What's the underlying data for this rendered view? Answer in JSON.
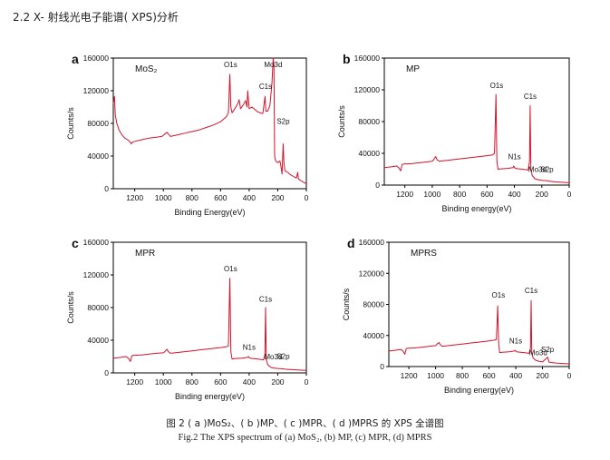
{
  "page": {
    "section_heading": "2.2 X- 射线光电子能谱( XPS)分析",
    "caption_cn": "图 2 ( a )MoS₂、( b )MP、( c )MPR、( d )MPRS 的 XPS 全谱图",
    "caption_en": "Fig.2 The XPS spectrum of (a) MoS₂, (b) MP, (c) MPR, (d) MPRS"
  },
  "colors": {
    "line": "#d4122c",
    "axis": "#000000",
    "text": "#111111"
  },
  "chart_data": [
    {
      "type": "line",
      "panel_letter": "a",
      "title": "MoS₂",
      "xlabel": "Binding Energy(eV)",
      "ylabel": "Counts/s",
      "xlim": [
        1350,
        0
      ],
      "ylim": [
        0,
        160000
      ],
      "xticks": [
        1200,
        1000,
        800,
        600,
        400,
        200,
        0
      ],
      "yticks": [
        0,
        40000,
        80000,
        120000,
        160000
      ],
      "grid": false,
      "annotations": [
        {
          "text": "O1s",
          "x": 530,
          "y": 150000
        },
        {
          "text": "Mo3d",
          "x": 232,
          "y": 160000
        },
        {
          "text": "C1s",
          "x": 285,
          "y": 118000
        },
        {
          "text": "S2p",
          "x": 162,
          "y": 75000
        }
      ],
      "series": [
        {
          "points": [
            [
              1350,
              104000
            ],
            [
              1342,
              113000
            ],
            [
              1336,
              90000
            ],
            [
              1325,
              80000
            ],
            [
              1310,
              72000
            ],
            [
              1290,
              66000
            ],
            [
              1270,
              62000
            ],
            [
              1250,
              60000
            ],
            [
              1230,
              57000
            ],
            [
              1225,
              55000
            ],
            [
              1215,
              57000
            ],
            [
              1200,
              58000
            ],
            [
              1150,
              60000
            ],
            [
              1100,
              62000
            ],
            [
              1050,
              63000
            ],
            [
              1010,
              64000
            ],
            [
              990,
              67000
            ],
            [
              975,
              69000
            ],
            [
              965,
              67000
            ],
            [
              950,
              64000
            ],
            [
              900,
              66000
            ],
            [
              850,
              68000
            ],
            [
              800,
              70000
            ],
            [
              750,
              72000
            ],
            [
              700,
              75000
            ],
            [
              650,
              78000
            ],
            [
              600,
              82000
            ],
            [
              560,
              88000
            ],
            [
              545,
              93000
            ],
            [
              535,
              140000
            ],
            [
              528,
              100000
            ],
            [
              520,
              93000
            ],
            [
              500,
              98000
            ],
            [
              480,
              104000
            ],
            [
              470,
              109000
            ],
            [
              460,
              98000
            ],
            [
              440,
              103000
            ],
            [
              425,
              108000
            ],
            [
              415,
              100000
            ],
            [
              410,
              120000
            ],
            [
              400,
              98000
            ],
            [
              380,
              100000
            ],
            [
              340,
              94000
            ],
            [
              305,
              92000
            ],
            [
              300,
              98000
            ],
            [
              289,
              113000
            ],
            [
              283,
              95000
            ],
            [
              270,
              95000
            ],
            [
              255,
              102000
            ],
            [
              240,
              130000
            ],
            [
              232,
              160000
            ],
            [
              227,
              152000
            ],
            [
              222,
              40000
            ],
            [
              215,
              34000
            ],
            [
              200,
              32000
            ],
            [
              185,
              34000
            ],
            [
              180,
              30000
            ],
            [
              170,
              18000
            ],
            [
              162,
              55000
            ],
            [
              157,
              33000
            ],
            [
              150,
              22000
            ],
            [
              130,
              20000
            ],
            [
              110,
              17000
            ],
            [
              90,
              15000
            ],
            [
              70,
              13000
            ],
            [
              60,
              20000
            ],
            [
              55,
              12000
            ],
            [
              40,
              10000
            ],
            [
              20,
              8000
            ],
            [
              0,
              6000
            ]
          ]
        }
      ]
    },
    {
      "type": "line",
      "panel_letter": "b",
      "title": "MP",
      "xlabel": "Binding energy(eV)",
      "ylabel": "Counts/s",
      "xlim": [
        1350,
        0
      ],
      "ylim": [
        0,
        160000
      ],
      "xticks": [
        1200,
        1000,
        800,
        600,
        400,
        200,
        0
      ],
      "yticks": [
        0,
        40000,
        80000,
        120000,
        160000
      ],
      "grid": false,
      "annotations": [
        {
          "text": "O1s",
          "x": 530,
          "y": 118000
        },
        {
          "text": "C1s",
          "x": 285,
          "y": 104000
        },
        {
          "text": "N1s",
          "x": 400,
          "y": 28000
        },
        {
          "text": "Mo3d",
          "x": 232,
          "y": 12000
        },
        {
          "text": "S2p",
          "x": 162,
          "y": 12000
        }
      ],
      "series": [
        {
          "points": [
            [
              1350,
              22000
            ],
            [
              1300,
              23000
            ],
            [
              1260,
              24000
            ],
            [
              1245,
              22000
            ],
            [
              1230,
              18000
            ],
            [
              1220,
              26000
            ],
            [
              1210,
              26500
            ],
            [
              1150,
              27000
            ],
            [
              1100,
              28000
            ],
            [
              1050,
              29000
            ],
            [
              1000,
              30000
            ],
            [
              990,
              32000
            ],
            [
              975,
              36000
            ],
            [
              965,
              32000
            ],
            [
              950,
              30000
            ],
            [
              900,
              31000
            ],
            [
              850,
              32000
            ],
            [
              800,
              33000
            ],
            [
              750,
              34000
            ],
            [
              700,
              35000
            ],
            [
              650,
              36000
            ],
            [
              600,
              37000
            ],
            [
              560,
              38000
            ],
            [
              545,
              40000
            ],
            [
              535,
              114000
            ],
            [
              528,
              30000
            ],
            [
              520,
              20000
            ],
            [
              500,
              20500
            ],
            [
              450,
              21000
            ],
            [
              410,
              22000
            ],
            [
              405,
              24000
            ],
            [
              395,
              21000
            ],
            [
              340,
              20000
            ],
            [
              300,
              19000
            ],
            [
              290,
              30000
            ],
            [
              285,
              100000
            ],
            [
              280,
              20000
            ],
            [
              270,
              12000
            ],
            [
              250,
              8000
            ],
            [
              232,
              7000
            ],
            [
              200,
              6000
            ],
            [
              162,
              5500
            ],
            [
              150,
              5000
            ],
            [
              100,
              4000
            ],
            [
              50,
              3500
            ],
            [
              0,
              3000
            ]
          ]
        }
      ]
    },
    {
      "type": "line",
      "panel_letter": "c",
      "title": "MPR",
      "xlabel": "Binding energy(eV)",
      "ylabel": "Counts/s",
      "xlim": [
        1350,
        0
      ],
      "ylim": [
        0,
        160000
      ],
      "xticks": [
        1200,
        1000,
        800,
        600,
        400,
        200,
        0
      ],
      "yticks": [
        0,
        40000,
        80000,
        120000,
        160000
      ],
      "grid": false,
      "annotations": [
        {
          "text": "O1s",
          "x": 530,
          "y": 120000
        },
        {
          "text": "C1s",
          "x": 285,
          "y": 83000
        },
        {
          "text": "N1s",
          "x": 400,
          "y": 24000
        },
        {
          "text": "Mo3d",
          "x": 232,
          "y": 12000
        },
        {
          "text": "S2p",
          "x": 162,
          "y": 13000
        }
      ],
      "series": [
        {
          "points": [
            [
              1350,
              18000
            ],
            [
              1300,
              19000
            ],
            [
              1260,
              20000
            ],
            [
              1245,
              18000
            ],
            [
              1230,
              14000
            ],
            [
              1220,
              21000
            ],
            [
              1210,
              21500
            ],
            [
              1150,
              22000
            ],
            [
              1100,
              23000
            ],
            [
              1050,
              24000
            ],
            [
              1000,
              24500
            ],
            [
              990,
              26000
            ],
            [
              975,
              29000
            ],
            [
              965,
              26000
            ],
            [
              950,
              24000
            ],
            [
              900,
              25000
            ],
            [
              850,
              26000
            ],
            [
              800,
              27000
            ],
            [
              750,
              28000
            ],
            [
              700,
              29000
            ],
            [
              650,
              30000
            ],
            [
              600,
              31000
            ],
            [
              560,
              32000
            ],
            [
              545,
              33000
            ],
            [
              535,
              116000
            ],
            [
              528,
              26000
            ],
            [
              520,
              17000
            ],
            [
              500,
              17500
            ],
            [
              450,
              18000
            ],
            [
              410,
              19000
            ],
            [
              405,
              20000
            ],
            [
              395,
              18000
            ],
            [
              340,
              17000
            ],
            [
              300,
              16000
            ],
            [
              290,
              22000
            ],
            [
              285,
              80000
            ],
            [
              280,
              16000
            ],
            [
              270,
              10000
            ],
            [
              250,
              7000
            ],
            [
              232,
              6000
            ],
            [
              200,
              5500
            ],
            [
              162,
              5000
            ],
            [
              150,
              4500
            ],
            [
              100,
              4000
            ],
            [
              50,
              3500
            ],
            [
              0,
              3000
            ]
          ]
        }
      ]
    },
    {
      "type": "line",
      "panel_letter": "d",
      "title": "MPRS",
      "xlabel": "Binding energy(eV)",
      "ylabel": "Counts/s",
      "xlim": [
        1350,
        0
      ],
      "ylim": [
        0,
        160000
      ],
      "xticks": [
        1200,
        1000,
        800,
        600,
        400,
        200,
        0
      ],
      "yticks": [
        0,
        40000,
        80000,
        120000,
        160000
      ],
      "grid": false,
      "annotations": [
        {
          "text": "O1s",
          "x": 530,
          "y": 84000
        },
        {
          "text": "C1s",
          "x": 285,
          "y": 90000
        },
        {
          "text": "N1s",
          "x": 400,
          "y": 25000
        },
        {
          "text": "Mo3d",
          "x": 232,
          "y": 10000
        },
        {
          "text": "S2p",
          "x": 162,
          "y": 14000
        }
      ],
      "series": [
        {
          "points": [
            [
              1350,
              20000
            ],
            [
              1300,
              21000
            ],
            [
              1260,
              22000
            ],
            [
              1245,
              20000
            ],
            [
              1230,
              16000
            ],
            [
              1220,
              23000
            ],
            [
              1210,
              23500
            ],
            [
              1150,
              24000
            ],
            [
              1100,
              25000
            ],
            [
              1050,
              26000
            ],
            [
              1000,
              27000
            ],
            [
              990,
              29000
            ],
            [
              975,
              31000
            ],
            [
              965,
              28000
            ],
            [
              950,
              26000
            ],
            [
              900,
              27000
            ],
            [
              850,
              28000
            ],
            [
              800,
              29000
            ],
            [
              750,
              30000
            ],
            [
              700,
              31000
            ],
            [
              650,
              32000
            ],
            [
              600,
              33000
            ],
            [
              560,
              34000
            ],
            [
              545,
              35000
            ],
            [
              535,
              78000
            ],
            [
              528,
              28000
            ],
            [
              520,
              18000
            ],
            [
              500,
              18500
            ],
            [
              450,
              19000
            ],
            [
              410,
              20000
            ],
            [
              405,
              21000
            ],
            [
              395,
              19000
            ],
            [
              340,
              18000
            ],
            [
              300,
              17000
            ],
            [
              290,
              24000
            ],
            [
              285,
              85000
            ],
            [
              280,
              18000
            ],
            [
              270,
              11000
            ],
            [
              250,
              8000
            ],
            [
              232,
              7000
            ],
            [
              200,
              6000
            ],
            [
              162,
              12000
            ],
            [
              150,
              5500
            ],
            [
              100,
              4500
            ],
            [
              50,
              4000
            ],
            [
              0,
              3500
            ]
          ]
        }
      ]
    }
  ]
}
